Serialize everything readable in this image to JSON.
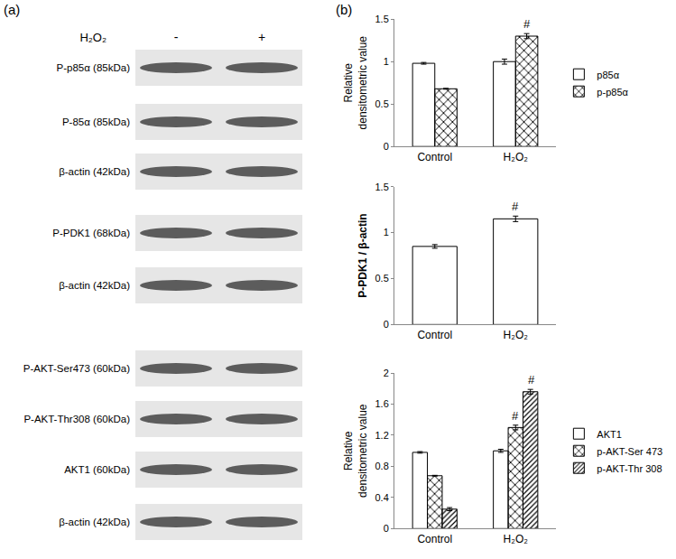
{
  "panel_labels": [
    "(a)",
    "(b)"
  ],
  "blots": {
    "treatment": "H₂O₂",
    "lanes": [
      "-",
      "+"
    ],
    "rows": [
      {
        "label": "P-p85α  (85kDa)",
        "group": 0
      },
      {
        "label": "P-85α (85kDa)",
        "group": 0
      },
      {
        "label": "β-actin (42kDa)",
        "group": 0
      },
      {
        "label": "P-PDK1 (68kDa)",
        "group": 1
      },
      {
        "label": "β-actin (42kDa)",
        "group": 1
      },
      {
        "label": "P-AKT-Ser473 (60kDa)",
        "group": 2
      },
      {
        "label": "P-AKT-Thr308 (60kDa)",
        "group": 2
      },
      {
        "label": "AKT1 (60kDa)",
        "group": 2
      },
      {
        "label": "β-actin (42kDa)",
        "group": 2
      }
    ]
  },
  "chart_data": [
    {
      "type": "bar",
      "y_label": "Relative\ndensitometric value",
      "categories": [
        "Control",
        "H₂O₂"
      ],
      "series": [
        {
          "name": "p85α",
          "color": "#222222",
          "values": [
            0.98,
            1.0
          ],
          "errors": [
            0.01,
            0.03
          ]
        },
        {
          "name": "p-p85α",
          "color": "#ffffff",
          "values": [
            0.68,
            1.3
          ],
          "errors": [
            0.005,
            0.03
          ]
        }
      ],
      "annotations": [
        {
          "text": "#",
          "category": "H₂O₂",
          "series": "p-p85α"
        }
      ],
      "ylim": [
        0,
        1.5
      ],
      "yticks": [
        0,
        0.5,
        1,
        1.5
      ],
      "grid": false,
      "legend": "right"
    },
    {
      "type": "bar",
      "y_label": "P-PDK1 / β-actin",
      "categories": [
        "Control",
        "H₂O₂"
      ],
      "values": [
        0.85,
        1.15
      ],
      "errors": [
        0.02,
        0.03
      ],
      "color": "#222222",
      "annotations": [
        {
          "text": "#",
          "category": "H₂O₂"
        }
      ],
      "ylim": [
        0,
        1.5
      ],
      "yticks": [
        0,
        0.5,
        1,
        1.5
      ],
      "grid": false
    },
    {
      "type": "bar",
      "y_label": "Relative\ndensitometric value",
      "categories": [
        "Control",
        "H₂O₂"
      ],
      "series": [
        {
          "name": "AKT1",
          "color": "#222222",
          "values": [
            0.98,
            1.0
          ],
          "errors": [
            0.01,
            0.02
          ]
        },
        {
          "name": "p-AKT-Ser 473",
          "color": "#ffffff",
          "values": [
            0.68,
            1.3
          ],
          "errors": [
            0.005,
            0.03
          ]
        },
        {
          "name": "p-AKT-Thr 308",
          "color": "#f4f4f4",
          "values": [
            0.25,
            1.76
          ],
          "errors": [
            0.02,
            0.03
          ]
        }
      ],
      "annotations": [
        {
          "text": "#",
          "category": "H₂O₂",
          "series": "p-AKT-Ser 473"
        },
        {
          "text": "#",
          "category": "H₂O₂",
          "series": "p-AKT-Thr 308"
        }
      ],
      "ylim": [
        0,
        2
      ],
      "yticks": [
        0,
        0.4,
        0.8,
        1.2,
        1.6,
        2
      ],
      "grid": false,
      "legend": "right"
    }
  ]
}
